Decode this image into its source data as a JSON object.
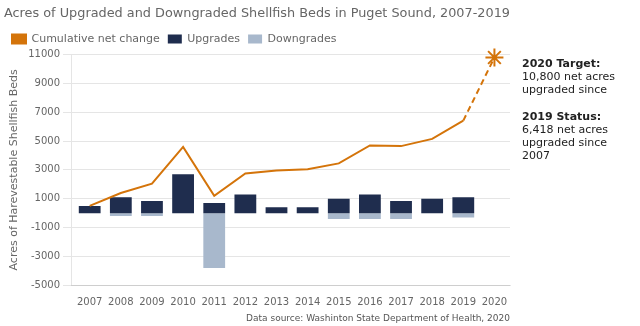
{
  "chart_data": {
    "type": "bar",
    "title": "Acres of Upgraded and Downgraded Shellfish Beds in Puget Sound, 2007-2019",
    "ylabel": "Acres of Harevestable Shellfish Beds",
    "source": "Data source: Washinton State Department of Health, 2020",
    "x": [
      2007,
      2008,
      2009,
      2010,
      2011,
      2012,
      2013,
      2014,
      2015,
      2016,
      2017,
      2018,
      2019
    ],
    "xlim": [
      2006.4,
      2020.5
    ],
    "xticks": [
      2007,
      2008,
      2009,
      2010,
      2011,
      2012,
      2013,
      2014,
      2015,
      2016,
      2017,
      2018,
      2019,
      2020
    ],
    "ylim": [
      -5000,
      11000
    ],
    "yticks": [
      11000,
      9000,
      7000,
      5000,
      3000,
      1000,
      -1000,
      -3000,
      -5000
    ],
    "grid": "y",
    "legend": "upper left",
    "series": [
      {
        "name": "Upgrades",
        "type": "bar",
        "color": "#1f2d4e",
        "values": [
          500,
          1100,
          850,
          2700,
          700,
          1300,
          400,
          400,
          1000,
          1300,
          850,
          1000,
          1100
        ]
      },
      {
        "name": "Downgrades",
        "type": "bar",
        "color": "#a8b8cc",
        "values": [
          0,
          -200,
          -200,
          0,
          -3800,
          0,
          0,
          0,
          -400,
          -400,
          -400,
          0,
          -300
        ]
      },
      {
        "name": "Cumulative net change",
        "type": "line",
        "color": "#d4740a",
        "marker": "none",
        "line_style": "solid",
        "values": [
          500,
          1400,
          2050,
          4600,
          1200,
          2750,
          2950,
          3050,
          3450,
          4700,
          4650,
          5150,
          6418
        ]
      },
      {
        "type": "line",
        "color": "#d4740a",
        "marker": "none",
        "line_style": "dashed",
        "x": [
          2019,
          2020
        ],
        "values": [
          6418,
          10800
        ]
      },
      {
        "type": "scatter",
        "color": "#d4740a",
        "marker": "star",
        "x": [
          2020
        ],
        "values": [
          10800
        ]
      }
    ],
    "annotations": [
      {
        "heading": "2020 Target:",
        "text": "10,800 net acres\nupgraded since"
      },
      {
        "heading": "2019 Status:",
        "text": "6,418 net acres\nupgraded since\n2007"
      }
    ]
  }
}
